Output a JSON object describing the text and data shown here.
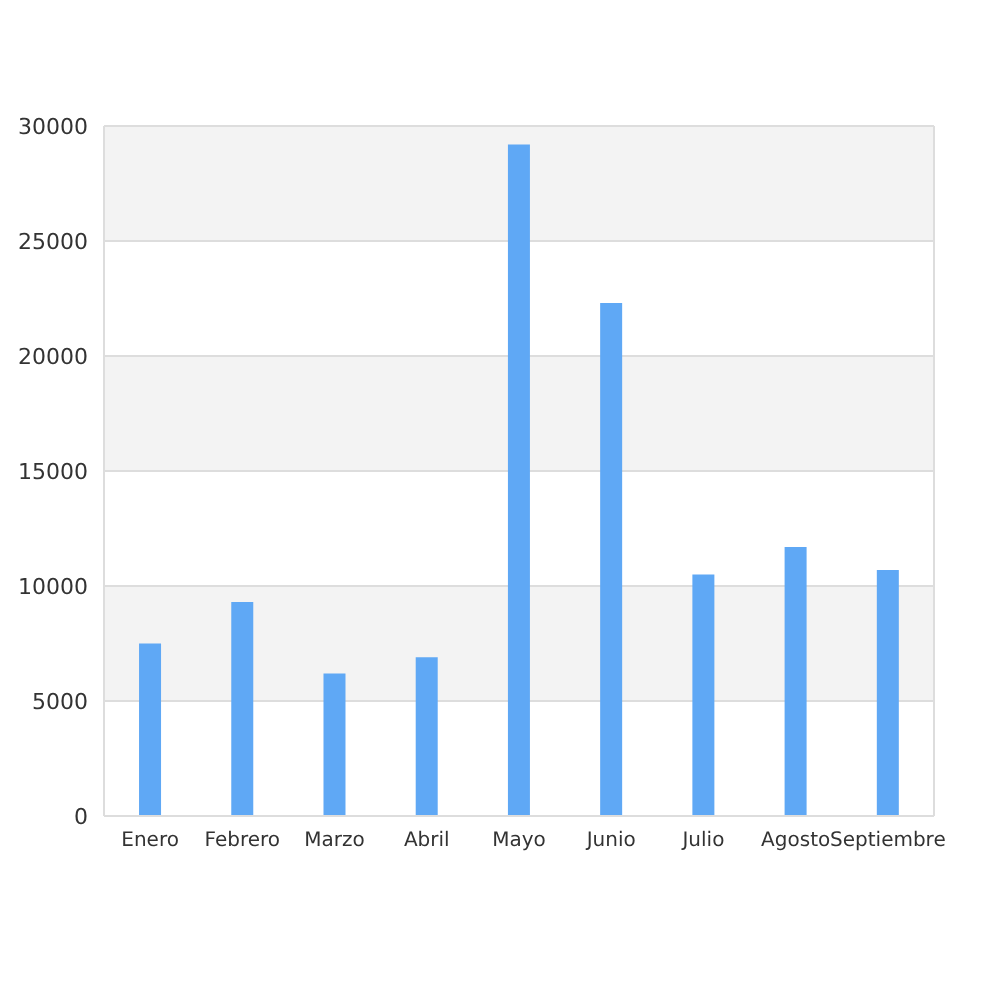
{
  "chart_data": {
    "type": "bar",
    "categories": [
      "Enero",
      "Febrero",
      "Marzo",
      "Abril",
      "Mayo",
      "Junio",
      "Julio",
      "Agosto",
      "Septiembre"
    ],
    "values": [
      7500,
      9300,
      6200,
      6900,
      29200,
      22300,
      10500,
      11700,
      10700
    ],
    "color": "#5fa8f5",
    "ylim": [
      0,
      30000
    ],
    "yticks": [
      0,
      5000,
      10000,
      15000,
      20000,
      25000,
      30000
    ],
    "grid": "y"
  }
}
